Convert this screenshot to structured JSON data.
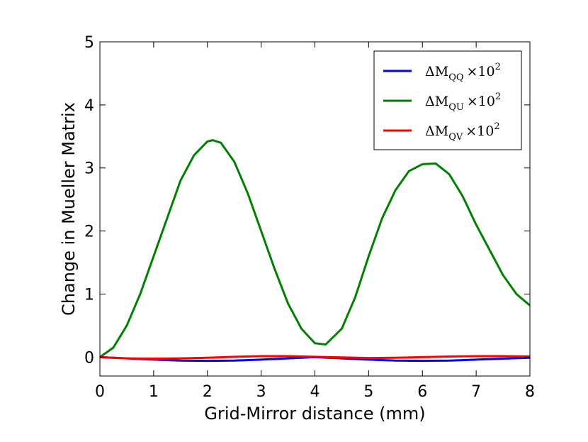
{
  "chart_data": {
    "type": "line",
    "title": "",
    "xlabel": "Grid-Mirror distance (mm)",
    "ylabel": "Change in Mueller Matrix",
    "xlim": [
      0,
      8
    ],
    "ylim": [
      -0.3,
      5
    ],
    "xticks": [
      0,
      1,
      2,
      3,
      4,
      5,
      6,
      7,
      8
    ],
    "yticks": [
      0,
      1,
      2,
      3,
      4,
      5
    ],
    "grid": false,
    "legend_position": "top-right",
    "series": [
      {
        "name": "ΔM_QQ ×10^2",
        "legend_main": "ΔM",
        "legend_sub": "QQ",
        "legend_suffix": "×10",
        "legend_exp": "2",
        "color": "#0000ff",
        "x": [
          0,
          0.5,
          1,
          1.5,
          2,
          2.5,
          3,
          3.5,
          4,
          4.5,
          5,
          5.5,
          6,
          6.5,
          7,
          7.5,
          8
        ],
        "y": [
          0,
          -0.02,
          -0.04,
          -0.055,
          -0.06,
          -0.055,
          -0.04,
          -0.02,
          0,
          -0.02,
          -0.04,
          -0.055,
          -0.06,
          -0.055,
          -0.04,
          -0.025,
          -0.01
        ]
      },
      {
        "name": "ΔM_QU ×10^2",
        "legend_main": "ΔM",
        "legend_sub": "QU",
        "legend_suffix": "×10",
        "legend_exp": "2",
        "color": "#008000",
        "x": [
          0,
          0.25,
          0.5,
          0.75,
          1,
          1.25,
          1.5,
          1.75,
          2,
          2.1,
          2.25,
          2.5,
          2.75,
          3,
          3.25,
          3.5,
          3.75,
          4,
          4.2,
          4.5,
          4.75,
          5,
          5.25,
          5.5,
          5.75,
          6,
          6.25,
          6.5,
          6.75,
          7,
          7.25,
          7.5,
          7.75,
          8
        ],
        "y": [
          0,
          0.15,
          0.5,
          1.0,
          1.6,
          2.2,
          2.8,
          3.2,
          3.42,
          3.44,
          3.4,
          3.1,
          2.6,
          2.0,
          1.4,
          0.85,
          0.45,
          0.22,
          0.2,
          0.45,
          0.95,
          1.6,
          2.2,
          2.65,
          2.95,
          3.06,
          3.07,
          2.9,
          2.55,
          2.1,
          1.7,
          1.3,
          1.0,
          0.82
        ]
      },
      {
        "name": "ΔM_QV ×10^2",
        "legend_main": "ΔM",
        "legend_sub": "QV",
        "legend_suffix": "×10",
        "legend_exp": "2",
        "color": "#ff0000",
        "x": [
          0,
          0.5,
          1,
          1.5,
          2,
          2.5,
          3,
          3.5,
          4,
          4.5,
          5,
          5.5,
          6,
          6.5,
          7,
          7.5,
          8
        ],
        "y": [
          0,
          -0.02,
          -0.025,
          -0.02,
          -0.01,
          0.005,
          0.015,
          0.015,
          0.005,
          -0.005,
          -0.015,
          -0.01,
          0.0,
          0.01,
          0.015,
          0.015,
          0.01
        ]
      }
    ]
  }
}
